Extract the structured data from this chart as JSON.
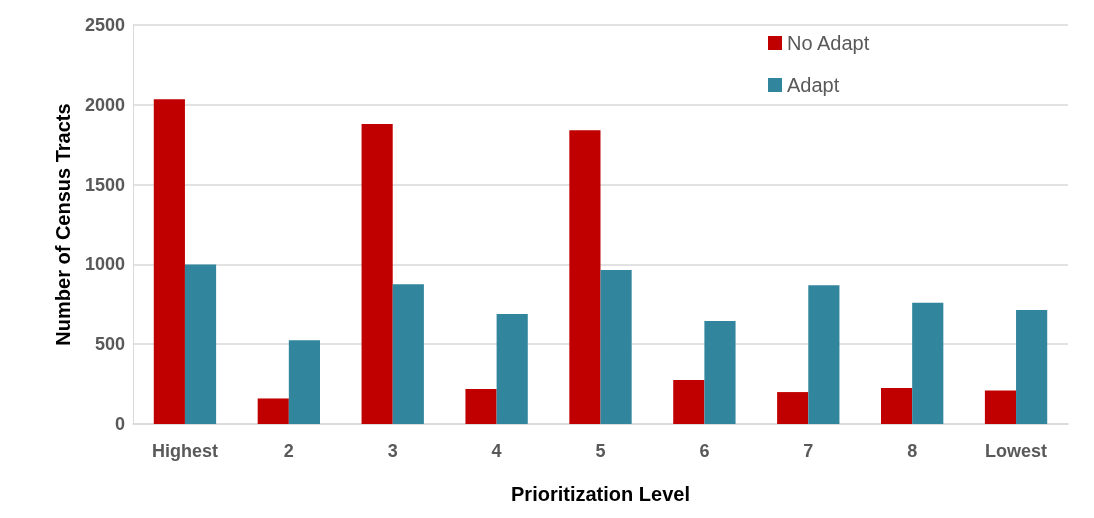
{
  "chart_data": {
    "type": "bar",
    "xlabel": "Prioritization Level",
    "ylabel": "Number of Census Tracts",
    "categories": [
      "Highest",
      "2",
      "3",
      "4",
      "5",
      "6",
      "7",
      "8",
      "Lowest"
    ],
    "series": [
      {
        "name": "No Adapt",
        "color": "#c00000",
        "values": [
          2035,
          160,
          1880,
          220,
          1840,
          275,
          200,
          225,
          210
        ]
      },
      {
        "name": "Adapt",
        "color": "#31859c",
        "values": [
          1000,
          525,
          875,
          690,
          965,
          645,
          870,
          760,
          715
        ]
      }
    ],
    "ylim": [
      0,
      2500
    ],
    "yticks": [
      0,
      500,
      1000,
      1500,
      2000,
      2500
    ],
    "grid": "y",
    "legend": "top right"
  }
}
